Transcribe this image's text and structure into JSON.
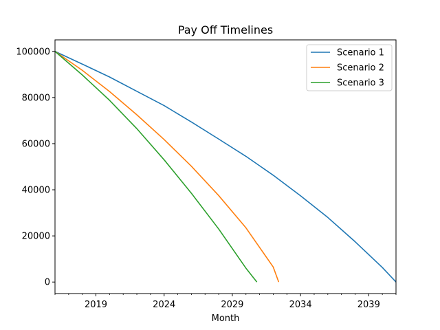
{
  "chart_data": {
    "type": "line",
    "title": "Pay Off Timelines",
    "xlabel": "Month",
    "ylabel": "",
    "xlim": [
      2016.0,
      2041.0
    ],
    "ylim": [
      -5000,
      105000
    ],
    "x_ticks": [
      2019,
      2024,
      2029,
      2034,
      2039
    ],
    "y_ticks": [
      0,
      20000,
      40000,
      60000,
      80000,
      100000
    ],
    "grid": false,
    "legend_position": "top-right",
    "series": [
      {
        "name": "Scenario 1",
        "color": "#1f77b4",
        "x": [
          2016.0,
          2018.0,
          2020.0,
          2022.0,
          2024.0,
          2026.0,
          2028.0,
          2030.0,
          2032.0,
          2034.0,
          2036.0,
          2038.0,
          2040.0,
          2041.0
        ],
        "y": [
          100000,
          94500,
          88900,
          82700,
          76500,
          69400,
          62000,
          54500,
          46300,
          37400,
          28000,
          17500,
          6300,
          0
        ]
      },
      {
        "name": "Scenario 2",
        "color": "#ff7f0e",
        "x": [
          2016.0,
          2018.0,
          2020.0,
          2022.0,
          2024.0,
          2026.0,
          2028.0,
          2030.0,
          2032.0,
          2032.4
        ],
        "y": [
          100000,
          91800,
          82600,
          72500,
          61800,
          50200,
          37500,
          23500,
          6500,
          0
        ]
      },
      {
        "name": "Scenario 3",
        "color": "#2ca02c",
        "x": [
          2016.0,
          2018.0,
          2020.0,
          2022.0,
          2024.0,
          2026.0,
          2028.0,
          2030.0,
          2030.8
        ],
        "y": [
          100000,
          89800,
          78800,
          66500,
          53000,
          38500,
          23000,
          6000,
          0
        ]
      }
    ]
  }
}
